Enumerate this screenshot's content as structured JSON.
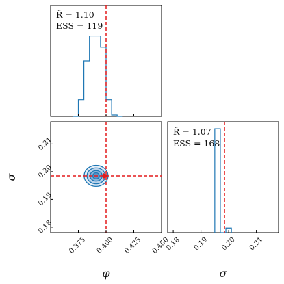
{
  "chart_data": [
    {
      "panel": "phi-marginal",
      "type": "histogram",
      "bin_edges": [
        0.37,
        0.375,
        0.38,
        0.385,
        0.39,
        0.395,
        0.4,
        0.405,
        0.41,
        0.415
      ],
      "counts": [
        0,
        1.2,
        4.0,
        5.8,
        5.8,
        5.0,
        1.2,
        0.1,
        0
      ],
      "xlim": [
        0.35,
        0.45
      ],
      "ylim": [
        0,
        8.0
      ],
      "truth": 0.4,
      "annotations": [
        "R̂ = 1.10",
        "ESS = 119"
      ],
      "color": "#1f77b4",
      "truth_color": "#e31a1c"
    },
    {
      "panel": "joint-density",
      "type": "contour",
      "xlim": [
        0.35,
        0.45
      ],
      "ylim": [
        0.178,
        0.218
      ],
      "x_ticks": [
        0.375,
        0.4,
        0.425,
        0.45
      ],
      "x_tick_labels": [
        "0.375",
        "0.400",
        "0.425",
        "0.450"
      ],
      "y_ticks": [
        0.18,
        0.19,
        0.2,
        0.21
      ],
      "y_tick_labels": [
        "0.18",
        "0.19",
        "0.20",
        "0.21"
      ],
      "xlabel": "φ",
      "ylabel": "σ",
      "center": {
        "x": 0.391,
        "y": 0.1985
      },
      "contours": [
        {
          "rx": 0.0108,
          "ry": 0.0038
        },
        {
          "rx": 0.0082,
          "ry": 0.0029
        },
        {
          "rx": 0.0055,
          "ry": 0.0019
        },
        {
          "rx": 0.003,
          "ry": 0.0011
        }
      ],
      "truth": {
        "x": 0.4,
        "y": 0.1985
      },
      "color": "#1f77b4",
      "truth_color": "#e31a1c"
    },
    {
      "panel": "sigma-marginal",
      "type": "histogram",
      "bin_edges": [
        0.195,
        0.197,
        0.199,
        0.201
      ],
      "counts": [
        9.0,
        0,
        0.4
      ],
      "xlim": [
        0.178,
        0.218
      ],
      "ylim": [
        0,
        9.6
      ],
      "x_ticks": [
        0.18,
        0.19,
        0.2,
        0.21
      ],
      "x_tick_labels": [
        "0.18",
        "0.19",
        "0.20",
        "0.21"
      ],
      "xlabel": "σ",
      "truth": 0.1985,
      "annotations": [
        "R̂ = 1.07",
        "ESS = 168"
      ],
      "color": "#1f77b4",
      "truth_color": "#e31a1c"
    }
  ]
}
